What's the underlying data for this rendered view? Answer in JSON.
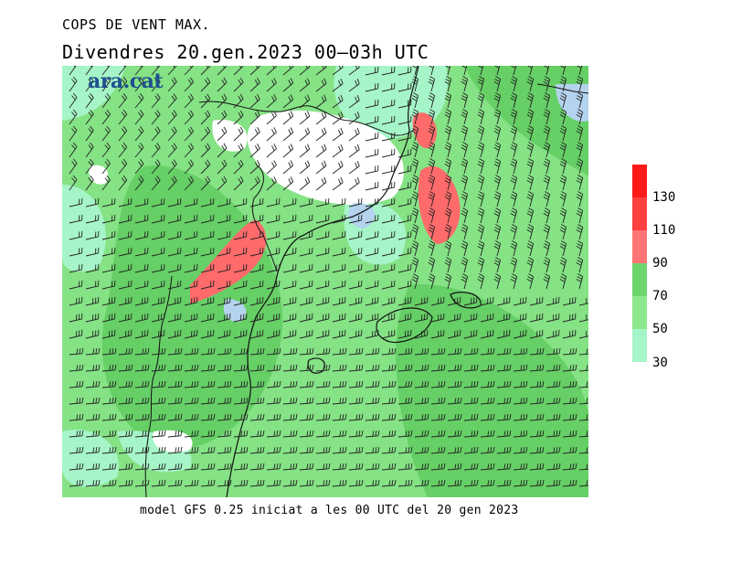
{
  "header": {
    "title": "COPS DE VENT MAX.",
    "subtitle": "Divendres  20.gen.2023 00—03h UTC"
  },
  "brand": {
    "logo_text": "ara.cat"
  },
  "footer": {
    "text": "model GFS 0.25 iniciat a les 00 UTC del 20 gen 2023"
  },
  "legend": {
    "bins": [
      {
        "color": "#ff1a1a"
      },
      {
        "color": "#ff4040",
        "label": "130"
      },
      {
        "color": "#ff7575",
        "label": "110"
      },
      {
        "color": "#6cd66c",
        "label": "90"
      },
      {
        "color": "#8ee88e",
        "label": "70"
      },
      {
        "color": "#a6f5c8",
        "label": "50"
      }
    ],
    "bottom_label": "30"
  },
  "map": {
    "colors": {
      "base": "#85e285",
      "dark_green": "#66cf66",
      "light_green": "#a6f5c8",
      "white": "#ffffff",
      "blue": "#b4d3ee",
      "red": "#ff6b6b",
      "coast": "#111111",
      "barbs": "#222222"
    }
  }
}
